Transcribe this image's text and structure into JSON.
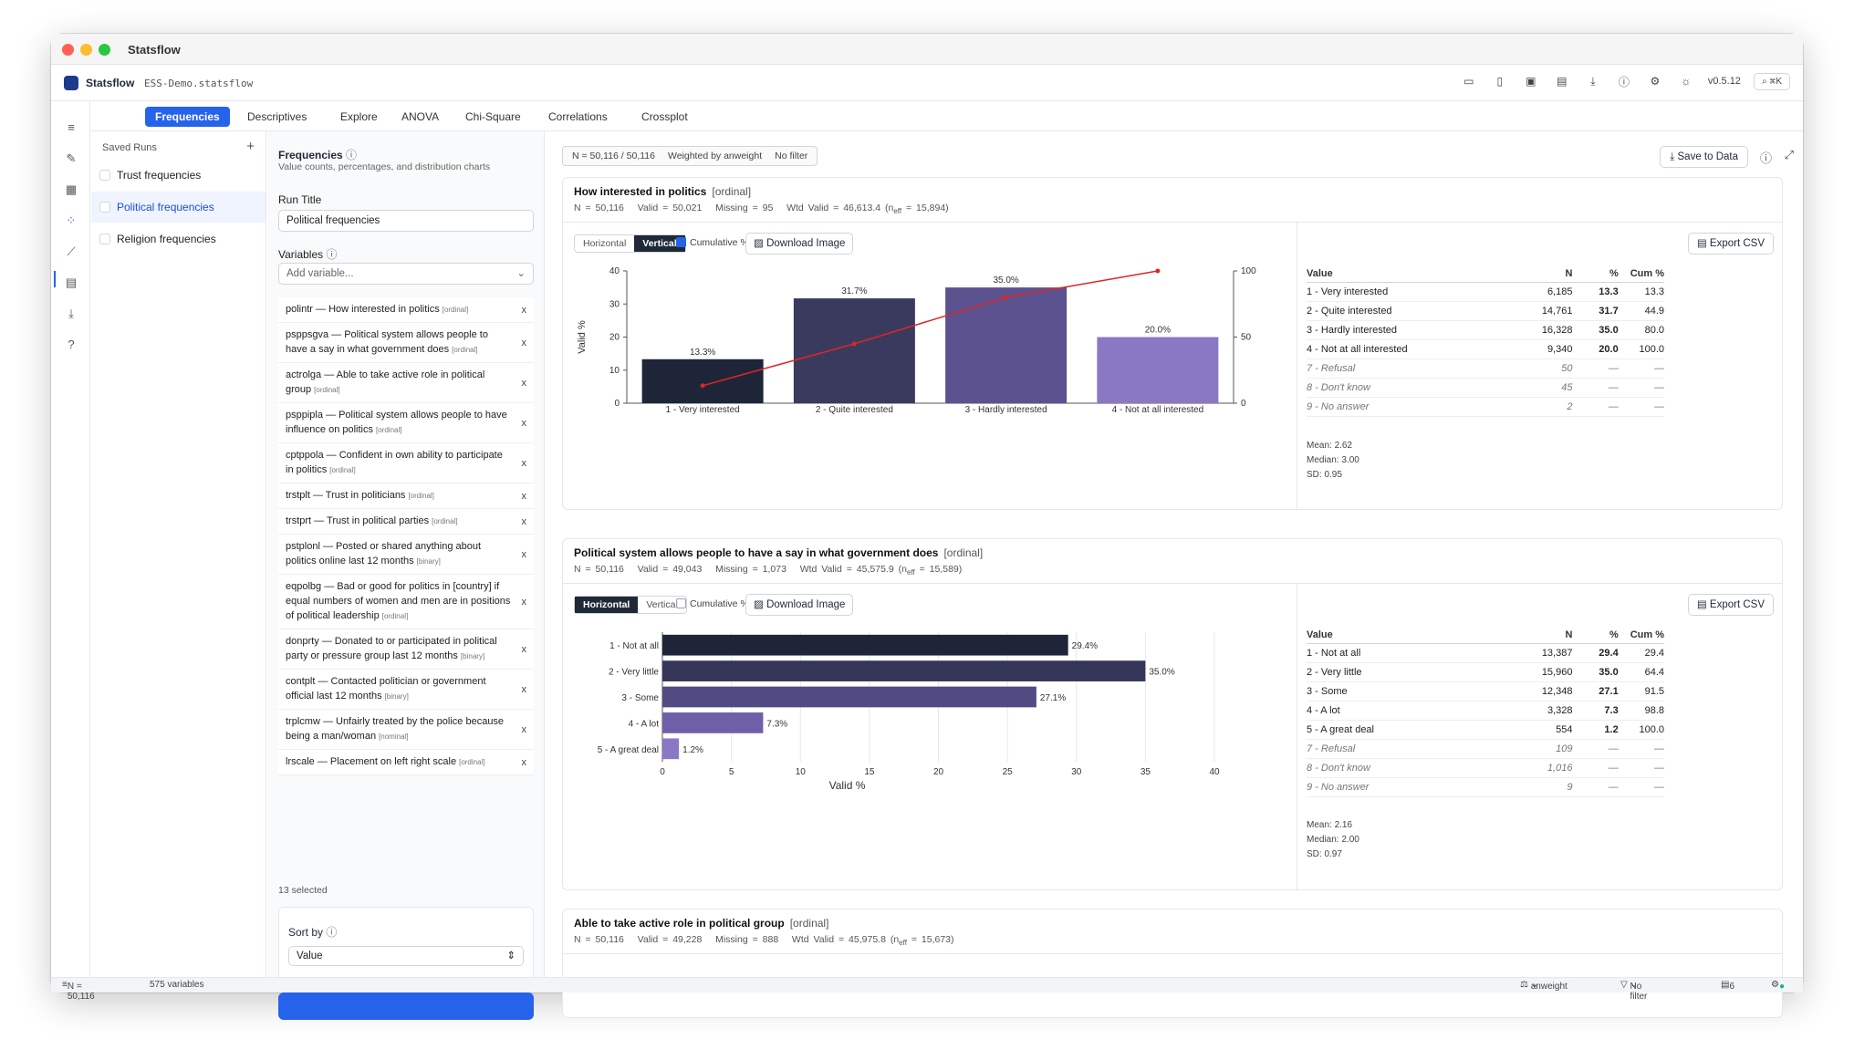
{
  "window": {
    "title": "Statsflow"
  },
  "appbar": {
    "name": "Statsflow",
    "file": "ESS-Demo.statsflow",
    "version": "v0.5.12",
    "search_shortcut": "⌘K"
  },
  "tabs": [
    "Frequencies",
    "Descriptives",
    "Explore",
    "ANOVA",
    "Chi-Square",
    "Correlations",
    "Crossplot"
  ],
  "saved_runs": {
    "header": "Saved Runs",
    "items": [
      "Trust frequencies",
      "Political frequencies",
      "Religion frequencies"
    ]
  },
  "config": {
    "title": "Frequencies",
    "subtitle": "Value counts, percentages, and distribution charts",
    "run_title_label": "Run Title",
    "run_title_value": "Political frequencies",
    "variables_label": "Variables",
    "add_placeholder": "Add variable...",
    "variables": [
      {
        "text": "polintr — How interested in politics",
        "tag": "[ordinal]"
      },
      {
        "text": "psppsgva — Political system allows people to have a say in what government does",
        "tag": "[ordinal]"
      },
      {
        "text": "actrolga — Able to take active role in political group",
        "tag": "[ordinal]"
      },
      {
        "text": "psppipla — Political system allows people to have influence on politics",
        "tag": "[ordinal]"
      },
      {
        "text": "cptppola — Confident in own ability to participate in politics",
        "tag": "[ordinal]"
      },
      {
        "text": "trstplt — Trust in politicians",
        "tag": "[ordinal]"
      },
      {
        "text": "trstprt — Trust in political parties",
        "tag": "[ordinal]"
      },
      {
        "text": "pstplonl — Posted or shared anything about politics online last 12 months",
        "tag": "[binary]"
      },
      {
        "text": "eqpolbg — Bad or good for politics in [country] if equal numbers of women and men are in positions of political leadership",
        "tag": "[ordinal]"
      },
      {
        "text": "donprty — Donated to or participated in political party or pressure group last 12 months",
        "tag": "[binary]"
      },
      {
        "text": "contplt — Contacted politician or government official last 12 months",
        "tag": "[binary]"
      },
      {
        "text": "trplcmw — Unfairly treated by the police because being a man/woman",
        "tag": "[nominal]"
      },
      {
        "text": "lrscale — Placement on left right scale",
        "tag": "[ordinal]"
      }
    ],
    "selected_count": "13 selected",
    "sort_label": "Sort by",
    "sort_value": "Value"
  },
  "main": {
    "summary": {
      "n": "N = 50,116 / 50,116",
      "weight": "Weighted by anweight",
      "filter": "No filter"
    },
    "save_label": "Save to Data",
    "download_label": "Download Image",
    "export_label": "Export CSV",
    "horizontal_label": "Horizontal",
    "vertical_label": "Vertical",
    "cumulative_label": "Cumulative %",
    "table_headers": [
      "Value",
      "N",
      "%",
      "Cum %"
    ],
    "cards": [
      {
        "title": "How interested in politics",
        "level": "[ordinal]",
        "stats": {
          "n": "N = 50,116",
          "valid": "Valid = 50,021",
          "missing": "Missing = 95",
          "wtd": "Wtd Valid = 46,613.4 (n",
          "eff": "eff",
          "eff_value": " = 15,894)"
        },
        "rows": [
          {
            "value": "1 - Very interested",
            "n": "6,185",
            "pct": "13.3",
            "cum": "13.3",
            "missing": false
          },
          {
            "value": "2 - Quite interested",
            "n": "14,761",
            "pct": "31.7",
            "cum": "44.9",
            "missing": false
          },
          {
            "value": "3 - Hardly interested",
            "n": "16,328",
            "pct": "35.0",
            "cum": "80.0",
            "missing": false
          },
          {
            "value": "4 - Not at all interested",
            "n": "9,340",
            "pct": "20.0",
            "cum": "100.0",
            "missing": false
          },
          {
            "value": "7 - Refusal",
            "n": "50",
            "pct": "—",
            "cum": "—",
            "missing": true
          },
          {
            "value": "8 - Don't know",
            "n": "45",
            "pct": "—",
            "cum": "—",
            "missing": true
          },
          {
            "value": "9 - No answer",
            "n": "2",
            "pct": "—",
            "cum": "—",
            "missing": true
          }
        ],
        "mean": "Mean: 2.62",
        "median": "Median: 3.00",
        "sd": "SD: 0.95"
      },
      {
        "title": "Political system allows people to have a say in what government does",
        "level": "[ordinal]",
        "stats": {
          "n": "N = 50,116",
          "valid": "Valid = 49,043",
          "missing": "Missing = 1,073",
          "wtd": "Wtd Valid = 45,575.9 (n",
          "eff": "eff",
          "eff_value": " = 15,589)"
        },
        "rows": [
          {
            "value": "1 - Not at all",
            "n": "13,387",
            "pct": "29.4",
            "cum": "29.4",
            "missing": false
          },
          {
            "value": "2 - Very little",
            "n": "15,960",
            "pct": "35.0",
            "cum": "64.4",
            "missing": false
          },
          {
            "value": "3 - Some",
            "n": "12,348",
            "pct": "27.1",
            "cum": "91.5",
            "missing": false
          },
          {
            "value": "4 - A lot",
            "n": "3,328",
            "pct": "7.3",
            "cum": "98.8",
            "missing": false
          },
          {
            "value": "5 - A great deal",
            "n": "554",
            "pct": "1.2",
            "cum": "100.0",
            "missing": false
          },
          {
            "value": "7 - Refusal",
            "n": "109",
            "pct": "—",
            "cum": "—",
            "missing": true
          },
          {
            "value": "8 - Don't know",
            "n": "1,016",
            "pct": "—",
            "cum": "—",
            "missing": true
          },
          {
            "value": "9 - No answer",
            "n": "9",
            "pct": "—",
            "cum": "—",
            "missing": true
          }
        ],
        "mean": "Mean: 2.16",
        "median": "Median: 2.00",
        "sd": "SD: 0.97"
      },
      {
        "title": "Able to take active role in political group",
        "level": "[ordinal]",
        "stats": {
          "n": "N = 50,116",
          "valid": "Valid = 49,228",
          "missing": "Missing = 888",
          "wtd": "Wtd Valid = 45,975.8 (n",
          "eff": "eff",
          "eff_value": " = 15,673)"
        }
      }
    ]
  },
  "chart_data": [
    {
      "type": "bar",
      "orientation": "vertical",
      "categories": [
        "1 - Very interested",
        "2 - Quite interested",
        "3 - Hardly interested",
        "4 - Not at all interested"
      ],
      "values": [
        13.3,
        31.7,
        35.0,
        20.0
      ],
      "labels": [
        "13.3%",
        "31.7%",
        "35.0%",
        "20.0%"
      ],
      "cumulative": [
        13.3,
        44.9,
        80.0,
        100.0
      ],
      "ylabel": "Valid %",
      "ylim": [
        0,
        40
      ],
      "yticks": [
        0,
        10,
        20,
        30,
        40
      ],
      "y2lim": [
        0,
        100
      ],
      "y2ticks": [
        0,
        50,
        100
      ],
      "colors": [
        "#1f2538",
        "#3a3a5e",
        "#5c5290",
        "#8b78c4"
      ],
      "line_color": "#dc2626"
    },
    {
      "type": "bar",
      "orientation": "horizontal",
      "categories": [
        "1 - Not at all",
        "2 - Very little",
        "3 - Some",
        "4 - A lot",
        "5 - A great deal"
      ],
      "values": [
        29.4,
        35.0,
        27.1,
        7.3,
        1.2
      ],
      "labels": [
        "29.4%",
        "35.0%",
        "27.1%",
        "7.3%",
        "1.2%"
      ],
      "xlabel": "Valid %",
      "xlim": [
        0,
        40
      ],
      "xticks": [
        0,
        5,
        10,
        15,
        20,
        25,
        30,
        35,
        40
      ],
      "colors": [
        "#1f2538",
        "#35355a",
        "#524a82",
        "#6f5fa8",
        "#8b78c4"
      ]
    }
  ],
  "status": {
    "n": "N = 50,116",
    "vars": "575 variables",
    "weight": "anweight",
    "filter": "No filter",
    "count": "6"
  }
}
